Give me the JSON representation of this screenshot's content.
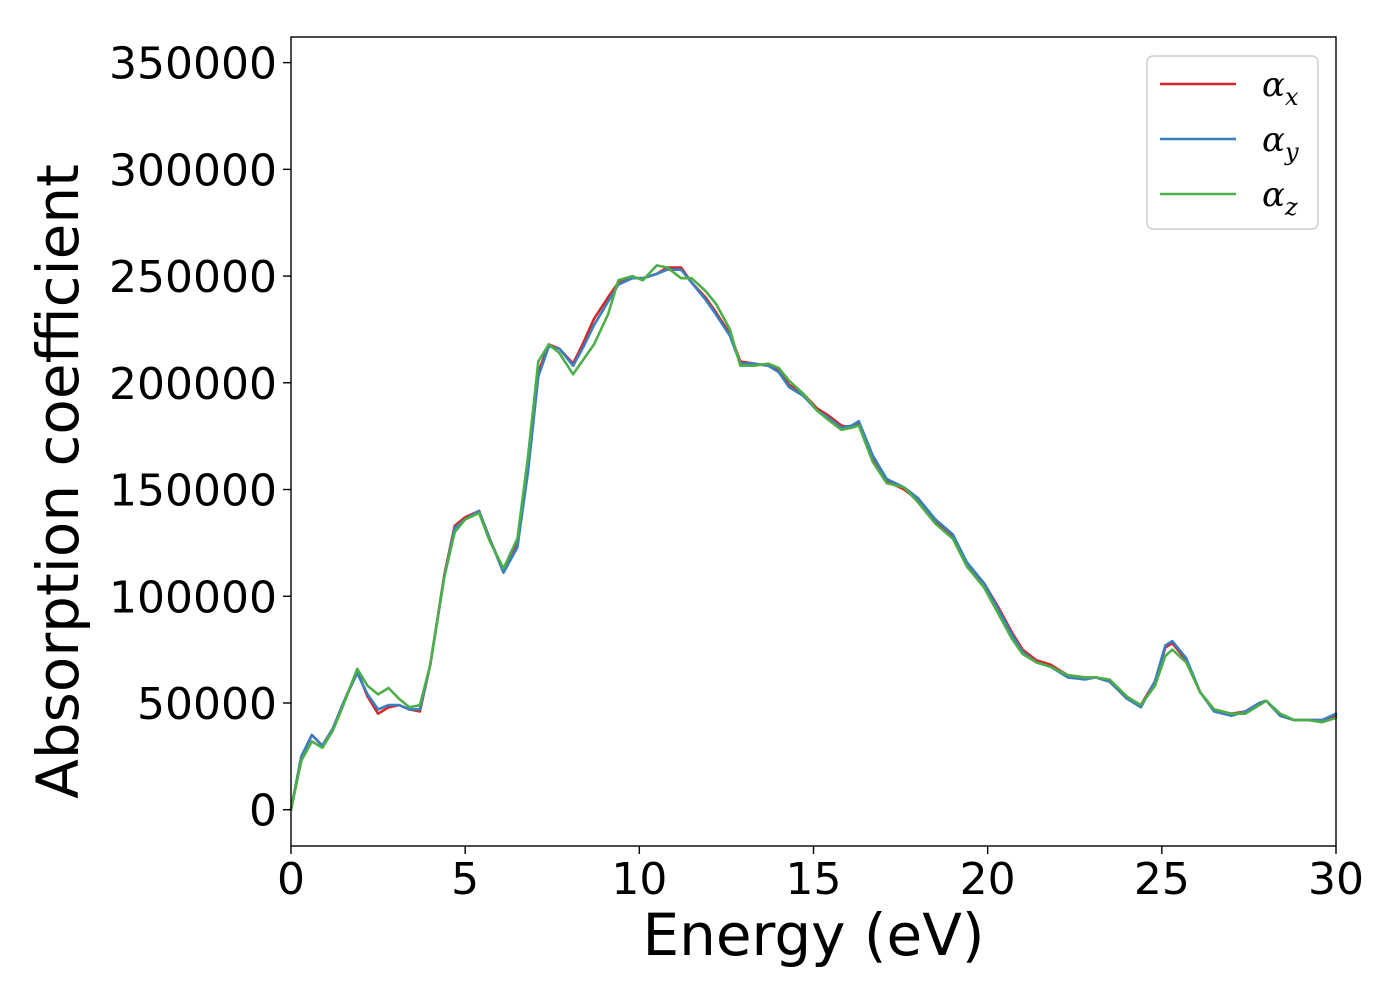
{
  "chart_data": {
    "type": "line",
    "xlabel": "Energy (eV)",
    "ylabel": "Absorption coefficient",
    "xlim": [
      0,
      30
    ],
    "ylim": [
      -17000,
      362000
    ],
    "x_ticks": [
      0,
      5,
      10,
      15,
      20,
      25,
      30
    ],
    "y_ticks": [
      0,
      50000,
      100000,
      150000,
      200000,
      250000,
      300000,
      350000
    ],
    "x_tick_labels": [
      "0",
      "5",
      "10",
      "15",
      "20",
      "25",
      "30"
    ],
    "y_tick_labels": [
      "0",
      "50000",
      "100000",
      "150000",
      "200000",
      "250000",
      "300000",
      "350000"
    ],
    "grid": false,
    "legend_position": "top-right",
    "x": [
      0,
      0.3,
      0.6,
      0.9,
      1.2,
      1.5,
      1.9,
      2.2,
      2.5,
      2.8,
      3.1,
      3.4,
      3.7,
      4.0,
      4.4,
      4.7,
      5.0,
      5.4,
      5.7,
      6.1,
      6.5,
      6.8,
      7.1,
      7.4,
      7.7,
      8.1,
      8.4,
      8.7,
      9.1,
      9.4,
      9.8,
      10.1,
      10.5,
      10.8,
      11.2,
      11.5,
      11.9,
      12.2,
      12.6,
      12.9,
      13.3,
      13.7,
      14.0,
      14.3,
      14.7,
      15.1,
      15.4,
      15.8,
      16.1,
      16.3,
      16.7,
      17.1,
      17.6,
      18.0,
      18.5,
      19.0,
      19.4,
      19.9,
      20.3,
      20.7,
      21.0,
      21.4,
      21.8,
      22.3,
      22.8,
      23.1,
      23.5,
      24.0,
      24.4,
      24.8,
      25.1,
      25.3,
      25.7,
      26.1,
      26.5,
      27.0,
      27.4,
      27.8,
      28.0,
      28.4,
      28.8,
      29.2,
      29.6,
      30.0
    ],
    "series": [
      {
        "name": "α",
        "subscript": "x",
        "color": "#d62728",
        "values": [
          0,
          25000,
          35000,
          30000,
          38000,
          50000,
          65000,
          53000,
          45000,
          48000,
          49000,
          47000,
          46000,
          68000,
          110000,
          133000,
          137000,
          140000,
          127000,
          112000,
          125000,
          160000,
          205000,
          218000,
          216000,
          209000,
          219000,
          230000,
          240000,
          247000,
          249000,
          249000,
          251000,
          254000,
          254000,
          247000,
          240000,
          233000,
          223000,
          210000,
          209000,
          208000,
          206000,
          199000,
          195000,
          188000,
          185000,
          180000,
          179000,
          181000,
          165000,
          154000,
          150000,
          145000,
          135000,
          128000,
          115000,
          106000,
          95000,
          83000,
          75000,
          70000,
          68000,
          63000,
          62000,
          62000,
          60000,
          52000,
          49000,
          60000,
          76000,
          78000,
          70000,
          55000,
          47000,
          45000,
          46000,
          50000,
          51000,
          44000,
          42000,
          42000,
          42000,
          44000
        ]
      },
      {
        "name": "α",
        "subscript": "y",
        "color": "#3a7fbf",
        "values": [
          0,
          25000,
          35000,
          30000,
          38000,
          50000,
          64000,
          54000,
          47000,
          49000,
          49000,
          47000,
          47000,
          68000,
          109000,
          132000,
          136000,
          140000,
          127000,
          111000,
          123000,
          158000,
          203000,
          217000,
          216000,
          208000,
          217000,
          227000,
          238000,
          246000,
          249000,
          249000,
          251000,
          253000,
          253000,
          247000,
          239000,
          232000,
          222000,
          209000,
          209000,
          208000,
          205000,
          198000,
          194000,
          187000,
          184000,
          179000,
          180000,
          182000,
          166000,
          155000,
          151000,
          146000,
          136000,
          129000,
          116000,
          106000,
          94000,
          82000,
          74000,
          69000,
          67000,
          62000,
          61000,
          62000,
          60000,
          52000,
          48000,
          60000,
          77000,
          79000,
          71000,
          55000,
          46000,
          44000,
          46000,
          50000,
          51000,
          44000,
          42000,
          42000,
          42000,
          45000
        ]
      },
      {
        "name": "α",
        "subscript": "z",
        "color": "#4daf4a",
        "values": [
          0,
          23000,
          32000,
          29000,
          37000,
          49000,
          66000,
          58000,
          54000,
          57000,
          52000,
          48000,
          49000,
          68000,
          109000,
          130000,
          136000,
          139000,
          126000,
          113000,
          127000,
          165000,
          210000,
          218000,
          214000,
          204000,
          211000,
          218000,
          232000,
          248000,
          250000,
          248000,
          255000,
          254000,
          249000,
          249000,
          243000,
          237000,
          225000,
          208000,
          208000,
          209000,
          207000,
          201000,
          195000,
          187000,
          183000,
          178000,
          179000,
          180000,
          163000,
          153000,
          151000,
          144000,
          134000,
          127000,
          114000,
          104000,
          92000,
          80000,
          73000,
          69000,
          67000,
          63000,
          62000,
          62000,
          61000,
          53000,
          49000,
          58000,
          72000,
          75000,
          69000,
          55000,
          47000,
          45000,
          45000,
          49000,
          51000,
          45000,
          42000,
          42000,
          41000,
          43000
        ]
      }
    ]
  }
}
